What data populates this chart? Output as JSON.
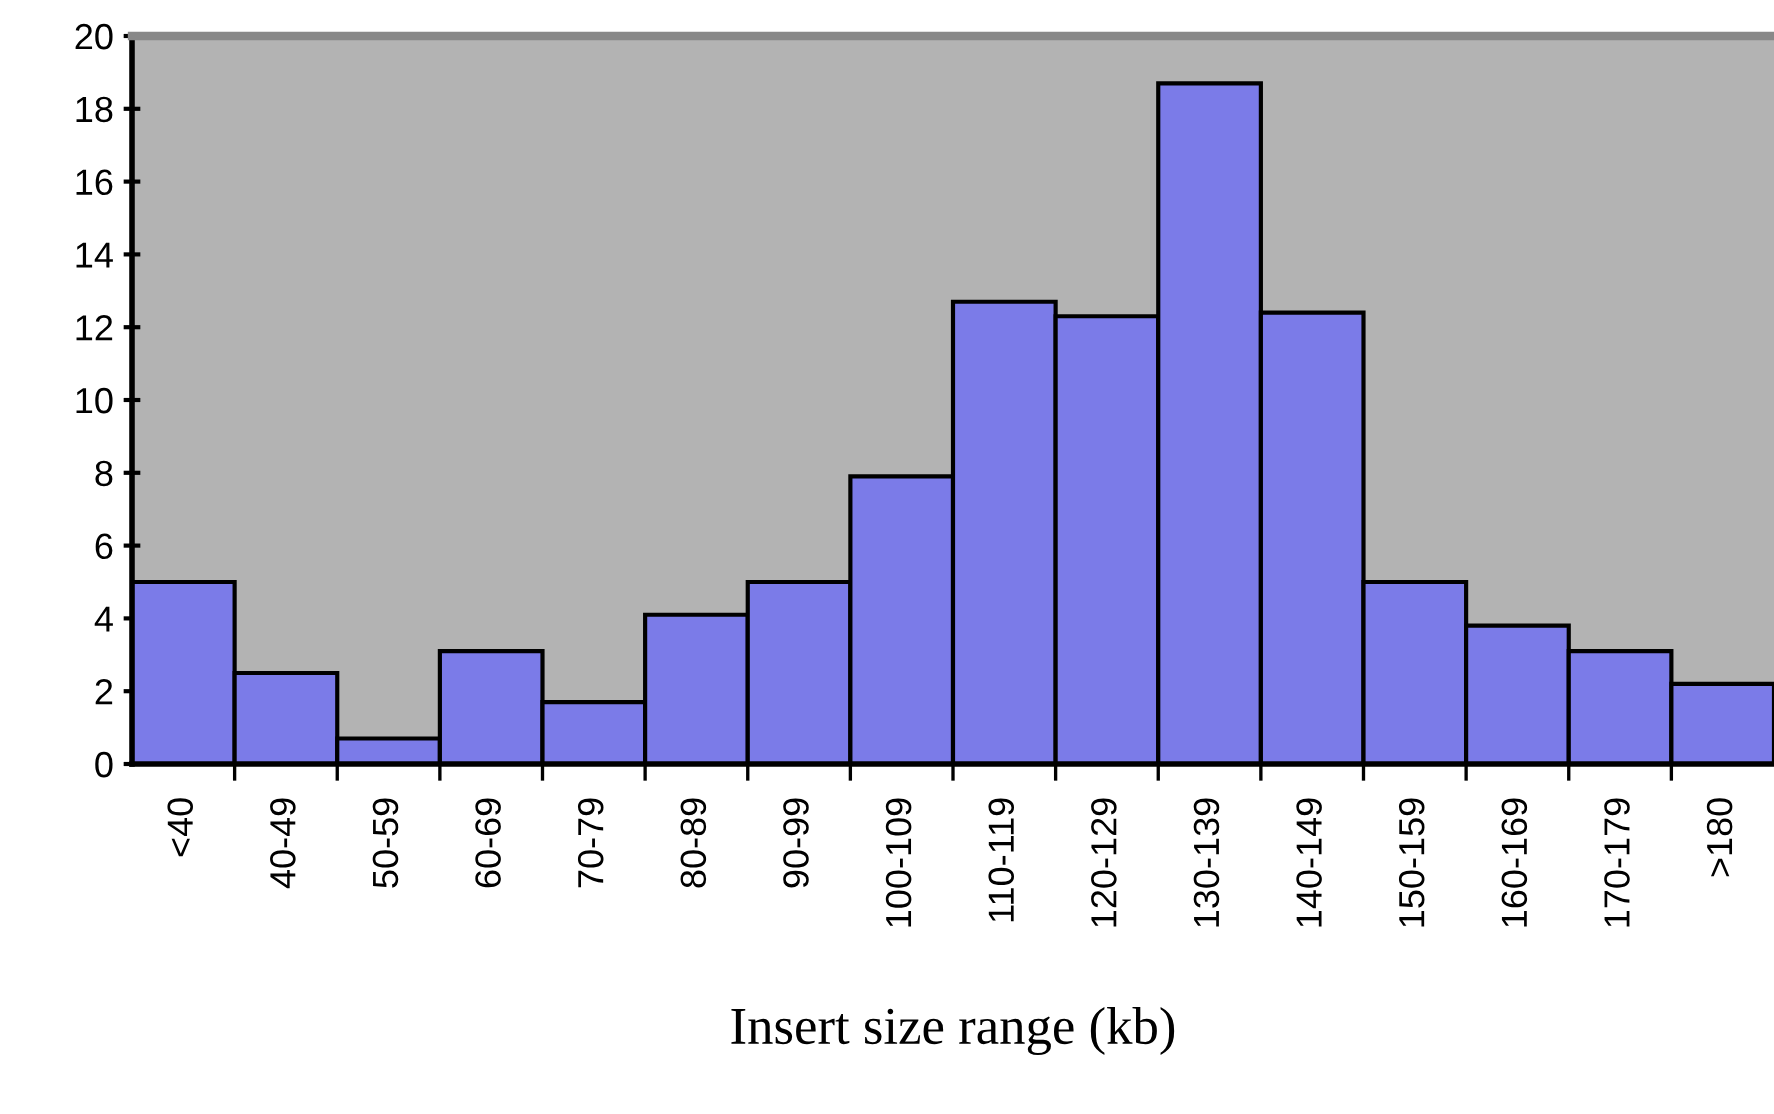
{
  "chart_data": {
    "type": "bar",
    "xlabel": "Insert size range (kb)",
    "categories": [
      "<40",
      "40-49",
      "50-59",
      "60-69",
      "70-79",
      "80-89",
      "90-99",
      "100-109",
      "110-119",
      "120-129",
      "130-139",
      "140-149",
      "150-159",
      "160-169",
      "170-179",
      ">180"
    ],
    "values": [
      5.0,
      2.5,
      0.7,
      3.1,
      1.7,
      4.1,
      5.0,
      7.9,
      12.7,
      12.3,
      18.7,
      12.4,
      5.0,
      3.8,
      3.1,
      2.2
    ],
    "color": "#7b7be8",
    "ylim": [
      0,
      20
    ],
    "yticks": [
      0,
      2,
      4,
      6,
      8,
      10,
      12,
      14,
      16,
      18,
      20
    ]
  }
}
